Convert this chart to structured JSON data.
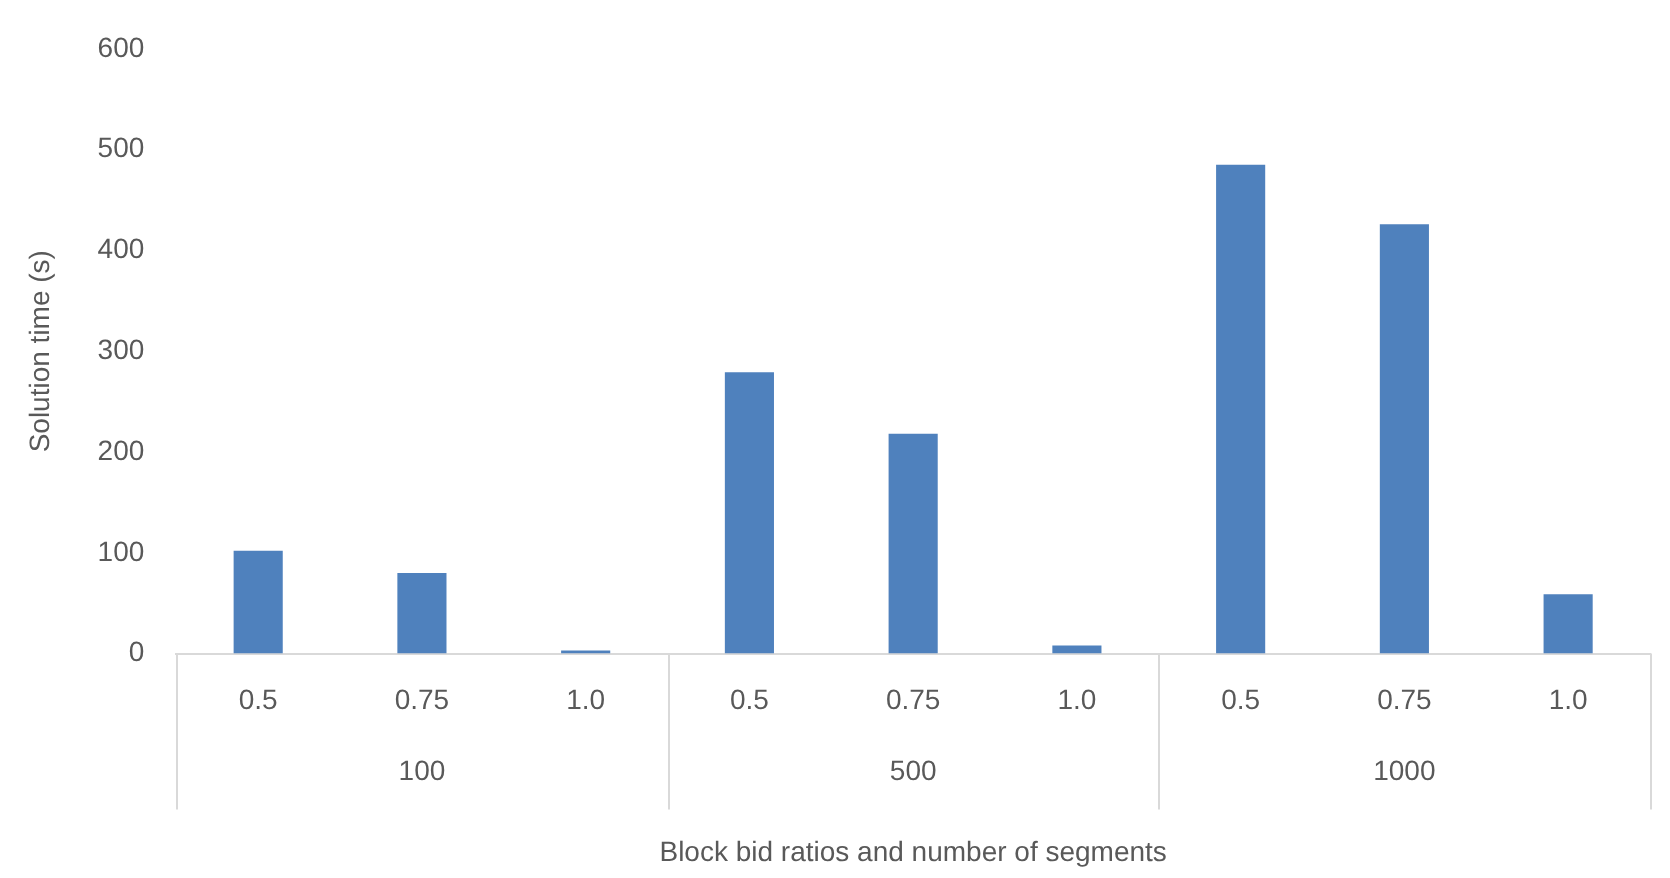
{
  "chart_data": {
    "type": "bar",
    "categories": [
      "0.5",
      "0.75",
      "1.0",
      "0.5",
      "0.75",
      "1.0",
      "0.5",
      "0.75",
      "1.0"
    ],
    "values": [
      102,
      80,
      3,
      279,
      218,
      8,
      485,
      426,
      59
    ],
    "color": "#4f81bd",
    "ylabel": "Solution time (s)",
    "xlabel": "Block bid ratios and number of segments",
    "annotations": [
      "100",
      "500",
      "1000"
    ],
    "ylim": [
      0,
      600
    ],
    "yticks": [
      0,
      100,
      200,
      300,
      400,
      500,
      600
    ],
    "grid": false,
    "legend": false
  }
}
